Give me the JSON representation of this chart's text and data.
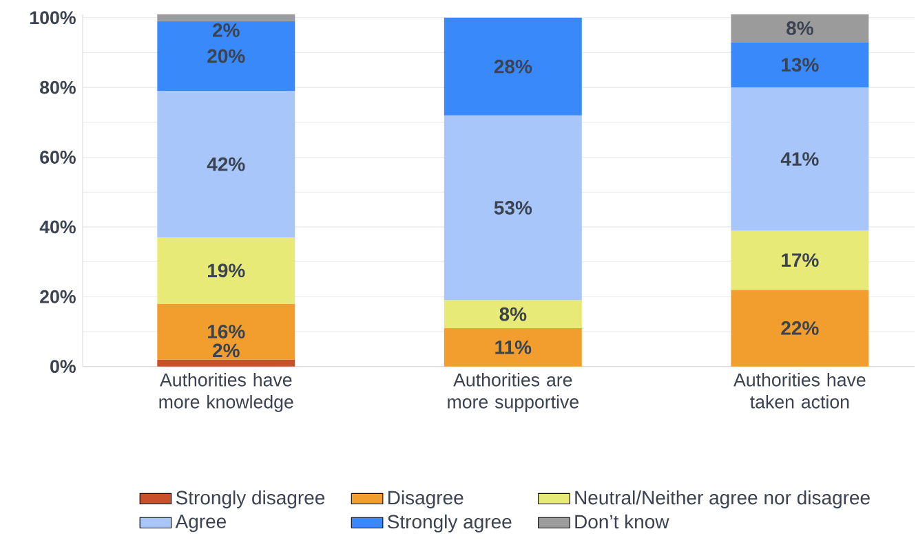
{
  "chart_data": {
    "type": "bar",
    "stacked": true,
    "categories": [
      "Authorities have more knowledge",
      "Authorities are more supportive",
      "Authorities have taken action"
    ],
    "series": [
      {
        "name": "Strongly disagree",
        "color": "#c8502a",
        "values": [
          2,
          null,
          null
        ],
        "value_labels": [
          "2%",
          null,
          null
        ]
      },
      {
        "name": "Disagree",
        "color": "#f29e2e",
        "values": [
          16,
          11,
          22
        ],
        "value_labels": [
          "16%",
          "11%",
          "22%"
        ]
      },
      {
        "name": "Neutral/Neither agree nor disagree",
        "color": "#e8ea78",
        "values": [
          19,
          8,
          17
        ],
        "value_labels": [
          "19%",
          "8%",
          "17%"
        ]
      },
      {
        "name": "Agree",
        "color": "#a8c6fa",
        "values": [
          42,
          53,
          41
        ],
        "value_labels": [
          "42%",
          "53%",
          "41%"
        ]
      },
      {
        "name": "Strongly agree",
        "color": "#3a89fb",
        "values": [
          20,
          28,
          13
        ],
        "value_labels": [
          "20%",
          "28%",
          "13%"
        ]
      },
      {
        "name": "Don’t know",
        "color": "#9b9b9b",
        "values": [
          2,
          null,
          8
        ],
        "value_labels": [
          "2%",
          null,
          "8%"
        ]
      }
    ],
    "ylim": [
      0,
      101
    ],
    "yticks": [
      {
        "value": 0,
        "label": "0%"
      },
      {
        "value": 10,
        "label": null
      },
      {
        "value": 20,
        "label": "20%"
      },
      {
        "value": 30,
        "label": null
      },
      {
        "value": 40,
        "label": "40%"
      },
      {
        "value": 50,
        "label": null
      },
      {
        "value": 60,
        "label": "60%"
      },
      {
        "value": 70,
        "label": null
      },
      {
        "value": 80,
        "label": "80%"
      },
      {
        "value": 90,
        "label": null
      },
      {
        "value": 100,
        "label": "100%"
      }
    ],
    "grid": "y",
    "legend": "bottom"
  }
}
